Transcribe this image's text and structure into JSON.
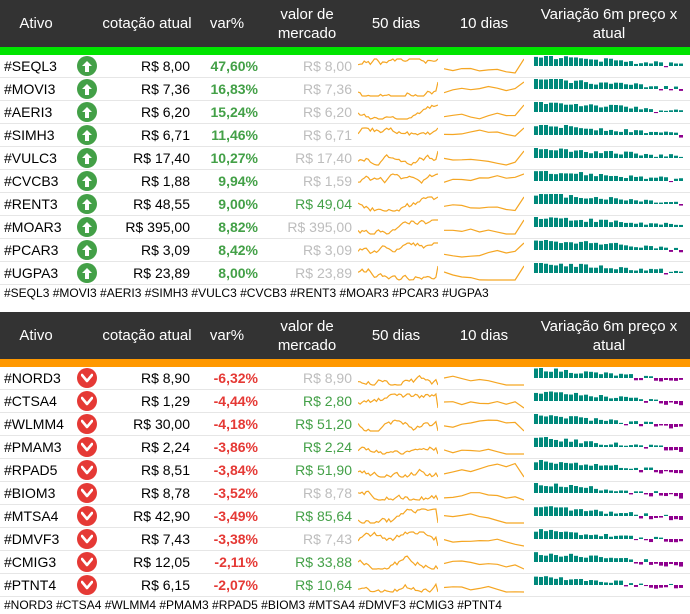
{
  "headers": {
    "ativo": "Ativo",
    "cotacao": "cotação atual",
    "var": "var%",
    "mercado": "valor de mercado",
    "d50": "50 dias",
    "d10": "10 dias",
    "m6": "Variação 6m preço x atual"
  },
  "colors": {
    "up_bar": "#00e400",
    "down_bar": "#ff9800",
    "spark": "#f5a623",
    "pos_bar": "#00897b",
    "neg_bar": "#8e008e"
  },
  "icons": {
    "up": "arrow-up-circle-icon",
    "down": "chevron-down-circle-icon"
  },
  "top": {
    "rows": [
      {
        "ticker": "#SEQL3",
        "price": "R$ 8,00",
        "var": "47,60%",
        "market": "R$ 8,00",
        "market_tone": "gray"
      },
      {
        "ticker": "#MOVI3",
        "price": "R$ 7,36",
        "var": "16,83%",
        "market": "R$ 7,36",
        "market_tone": "gray"
      },
      {
        "ticker": "#AERI3",
        "price": "R$ 6,20",
        "var": "15,24%",
        "market": "R$ 6,20",
        "market_tone": "gray"
      },
      {
        "ticker": "#SIMH3",
        "price": "R$ 6,71",
        "var": "11,46%",
        "market": "R$ 6,71",
        "market_tone": "gray"
      },
      {
        "ticker": "#VULC3",
        "price": "R$ 17,40",
        "var": "10,27%",
        "market": "R$ 17,40",
        "market_tone": "gray"
      },
      {
        "ticker": "#CVCB3",
        "price": "R$ 1,88",
        "var": "9,94%",
        "market": "R$ 1,59",
        "market_tone": "gray"
      },
      {
        "ticker": "#RENT3",
        "price": "R$ 48,55",
        "var": "9,00%",
        "market": "R$ 49,04",
        "market_tone": "green"
      },
      {
        "ticker": "#MOAR3",
        "price": "R$ 395,00",
        "var": "8,82%",
        "market": "R$ 395,00",
        "market_tone": "gray"
      },
      {
        "ticker": "#PCAR3",
        "price": "R$ 3,09",
        "var": "8,42%",
        "market": "R$ 3,09",
        "market_tone": "gray"
      },
      {
        "ticker": "#UGPA3",
        "price": "R$ 23,89",
        "var": "8,00%",
        "market": "R$ 23,89",
        "market_tone": "gray"
      }
    ],
    "tags": "#SEQL3 #MOVI3 #AERI3 #SIMH3 #VULC3 #CVCB3 #RENT3 #MOAR3 #PCAR3 #UGPA3"
  },
  "bottom": {
    "rows": [
      {
        "ticker": "#NORD3",
        "price": "R$ 8,90",
        "var": "-6,32%",
        "market": "R$ 8,90",
        "market_tone": "gray"
      },
      {
        "ticker": "#CTSA4",
        "price": "R$ 1,29",
        "var": "-4,44%",
        "market": "R$ 2,80",
        "market_tone": "green"
      },
      {
        "ticker": "#WLMM4",
        "price": "R$ 30,00",
        "var": "-4,18%",
        "market": "R$ 51,20",
        "market_tone": "green"
      },
      {
        "ticker": "#PMAM3",
        "price": "R$ 2,24",
        "var": "-3,86%",
        "market": "R$ 2,24",
        "market_tone": "green"
      },
      {
        "ticker": "#RPAD5",
        "price": "R$ 8,51",
        "var": "-3,84%",
        "market": "R$ 51,90",
        "market_tone": "green"
      },
      {
        "ticker": "#BIOM3",
        "price": "R$ 8,78",
        "var": "-3,52%",
        "market": "R$ 8,78",
        "market_tone": "gray"
      },
      {
        "ticker": "#MTSA4",
        "price": "R$ 42,90",
        "var": "-3,49%",
        "market": "R$ 85,64",
        "market_tone": "green"
      },
      {
        "ticker": "#DMVF3",
        "price": "R$ 7,43",
        "var": "-3,38%",
        "market": "R$ 7,43",
        "market_tone": "gray"
      },
      {
        "ticker": "#CMIG3",
        "price": "R$ 12,05",
        "var": "-2,11%",
        "market": "R$ 33,88",
        "market_tone": "green"
      },
      {
        "ticker": "#PTNT4",
        "price": "R$ 6,15",
        "var": "-2,07%",
        "market": "R$ 10,64",
        "market_tone": "green"
      }
    ],
    "tags": "#NORD3 #CTSA4 #WLMM4 #PMAM3 #RPAD5 #BIOM3 #MTSA4 #DMVF3 #CMIG3 #PTNT4"
  }
}
